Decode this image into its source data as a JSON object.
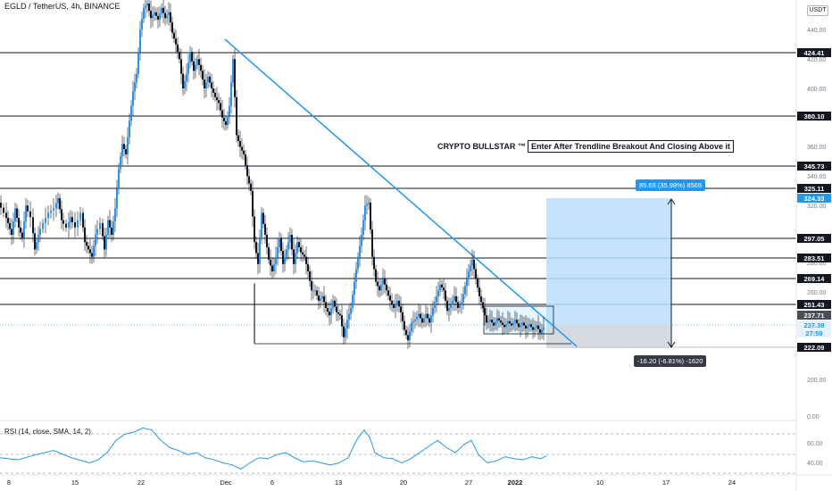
{
  "header": {
    "symbol_line": "EGLD / TetherUS, 4h, BINANCE",
    "currency": "USDT"
  },
  "annotations": {
    "brand": "CRYPTO BULLSTAR ™",
    "note": "Enter After Trendline Breakout And Closing Above it",
    "target_label": "85.69 (35.98%) 8569",
    "stop_label": "-16.20 (-6.81%) -1620"
  },
  "rsi": {
    "label": "RSI (14, close, SMA, 14, 2)",
    "ticks": [
      "60.00",
      "40.00"
    ]
  },
  "colors": {
    "trendline": "#2196f3",
    "hline": "#131722",
    "target_zone": "#bbdefb",
    "stop_zone": "#d1d4dc",
    "rsi_line": "#2196f3",
    "candle": "#131722"
  },
  "chart_data": {
    "type": "candlestick",
    "axis_ticks": [
      "440.00",
      "420.00",
      "400.00",
      "360.00",
      "340.00",
      "320.00",
      "280.00",
      "260.00",
      "200.00",
      "0.00"
    ],
    "x_ticks": [
      "8",
      "15",
      "22",
      "Dec",
      "6",
      "13",
      "20",
      "27",
      "2022",
      "10",
      "17",
      "24"
    ],
    "horizontal_levels": [
      {
        "label": "424.41",
        "value": 424.41
      },
      {
        "label": "380.10",
        "value": 380.1
      },
      {
        "label": "345.73",
        "value": 345.73
      },
      {
        "label": "325.11",
        "value": 325.11
      },
      {
        "label": "324.33",
        "value": 324.33,
        "kind": "target"
      },
      {
        "label": "297.05",
        "value": 297.05
      },
      {
        "label": "283.51",
        "value": 283.51
      },
      {
        "label": "269.14",
        "value": 269.14
      },
      {
        "label": "251.43",
        "value": 251.43
      },
      {
        "label": "237.71",
        "value": 237.71,
        "kind": "entry"
      },
      {
        "label": "237.39",
        "value": 237.39,
        "kind": "price"
      },
      {
        "label": "27:59",
        "kind": "countdown"
      },
      {
        "label": "222.09",
        "value": 222.09,
        "kind": "stop"
      }
    ],
    "price_path": [
      [
        0,
        322
      ],
      [
        6,
        315
      ],
      [
        10,
        308
      ],
      [
        14,
        300
      ],
      [
        18,
        318
      ],
      [
        22,
        305
      ],
      [
        26,
        298
      ],
      [
        30,
        320
      ],
      [
        36,
        312
      ],
      [
        40,
        290
      ],
      [
        44,
        300
      ],
      [
        50,
        308
      ],
      [
        56,
        315
      ],
      [
        62,
        318
      ],
      [
        66,
        325
      ],
      [
        70,
        310
      ],
      [
        76,
        305
      ],
      [
        80,
        312
      ],
      [
        86,
        305
      ],
      [
        92,
        315
      ],
      [
        96,
        295
      ],
      [
        100,
        290
      ],
      [
        104,
        285
      ],
      [
        108,
        300
      ],
      [
        114,
        308
      ],
      [
        118,
        290
      ],
      [
        122,
        310
      ],
      [
        126,
        300
      ],
      [
        130,
        318
      ],
      [
        134,
        345
      ],
      [
        138,
        362
      ],
      [
        142,
        355
      ],
      [
        146,
        378
      ],
      [
        150,
        398
      ],
      [
        154,
        410
      ],
      [
        158,
        440
      ],
      [
        162,
        455
      ],
      [
        166,
        458
      ],
      [
        170,
        448
      ],
      [
        174,
        452
      ],
      [
        178,
        447
      ],
      [
        182,
        455
      ],
      [
        186,
        448
      ],
      [
        190,
        452
      ],
      [
        194,
        438
      ],
      [
        198,
        430
      ],
      [
        202,
        420
      ],
      [
        206,
        400
      ],
      [
        210,
        410
      ],
      [
        214,
        425
      ],
      [
        218,
        412
      ],
      [
        222,
        420
      ],
      [
        226,
        412
      ],
      [
        230,
        400
      ],
      [
        234,
        408
      ],
      [
        238,
        400
      ],
      [
        242,
        394
      ],
      [
        246,
        390
      ],
      [
        250,
        380
      ],
      [
        254,
        375
      ],
      [
        258,
        388
      ],
      [
        262,
        420
      ],
      [
        266,
        368
      ],
      [
        270,
        360
      ],
      [
        274,
        355
      ],
      [
        278,
        340
      ],
      [
        282,
        330
      ],
      [
        286,
        295
      ],
      [
        290,
        280
      ],
      [
        294,
        315
      ],
      [
        298,
        300
      ],
      [
        302,
        283
      ],
      [
        306,
        275
      ],
      [
        310,
        285
      ],
      [
        314,
        298
      ],
      [
        318,
        280
      ],
      [
        322,
        290
      ],
      [
        326,
        300
      ],
      [
        330,
        280
      ],
      [
        334,
        295
      ],
      [
        338,
        288
      ],
      [
        342,
        285
      ],
      [
        346,
        275
      ],
      [
        350,
        262
      ],
      [
        354,
        262
      ],
      [
        358,
        255
      ],
      [
        362,
        258
      ],
      [
        366,
        250
      ],
      [
        370,
        245
      ],
      [
        374,
        255
      ],
      [
        378,
        247
      ],
      [
        382,
        245
      ],
      [
        386,
        230
      ],
      [
        390,
        242
      ],
      [
        394,
        250
      ],
      [
        398,
        268
      ],
      [
        402,
        285
      ],
      [
        406,
        300
      ],
      [
        410,
        320
      ],
      [
        414,
        322
      ],
      [
        418,
        285
      ],
      [
        422,
        268
      ],
      [
        426,
        262
      ],
      [
        430,
        270
      ],
      [
        434,
        262
      ],
      [
        438,
        255
      ],
      [
        442,
        250
      ],
      [
        446,
        255
      ],
      [
        450,
        247
      ],
      [
        454,
        235
      ],
      [
        458,
        228
      ],
      [
        462,
        240
      ],
      [
        466,
        242
      ],
      [
        470,
        246
      ],
      [
        474,
        240
      ],
      [
        478,
        246
      ],
      [
        482,
        240
      ],
      [
        486,
        250
      ],
      [
        490,
        258
      ],
      [
        494,
        266
      ],
      [
        498,
        262
      ],
      [
        502,
        248
      ],
      [
        506,
        252
      ],
      [
        510,
        258
      ],
      [
        514,
        250
      ],
      [
        518,
        254
      ],
      [
        522,
        265
      ],
      [
        526,
        275
      ],
      [
        530,
        283
      ],
      [
        534,
        270
      ],
      [
        538,
        258
      ],
      [
        542,
        250
      ],
      [
        546,
        240
      ],
      [
        550,
        242
      ],
      [
        554,
        238
      ],
      [
        558,
        243
      ],
      [
        562,
        240
      ],
      [
        566,
        237
      ],
      [
        570,
        241
      ],
      [
        574,
        238
      ],
      [
        578,
        242
      ],
      [
        582,
        237
      ],
      [
        586,
        240
      ],
      [
        590,
        236
      ],
      [
        594,
        239
      ],
      [
        598,
        235
      ],
      [
        602,
        238
      ],
      [
        606,
        233
      ],
      [
        610,
        237
      ]
    ],
    "rsi_path": [
      [
        0,
        45
      ],
      [
        20,
        43
      ],
      [
        40,
        48
      ],
      [
        60,
        52
      ],
      [
        80,
        45
      ],
      [
        100,
        40
      ],
      [
        110,
        43
      ],
      [
        120,
        50
      ],
      [
        130,
        62
      ],
      [
        140,
        68
      ],
      [
        150,
        70
      ],
      [
        160,
        74
      ],
      [
        170,
        72
      ],
      [
        180,
        62
      ],
      [
        190,
        55
      ],
      [
        200,
        52
      ],
      [
        210,
        48
      ],
      [
        220,
        50
      ],
      [
        230,
        45
      ],
      [
        240,
        43
      ],
      [
        250,
        40
      ],
      [
        260,
        38
      ],
      [
        270,
        34
      ],
      [
        280,
        40
      ],
      [
        290,
        45
      ],
      [
        300,
        44
      ],
      [
        310,
        48
      ],
      [
        320,
        50
      ],
      [
        330,
        45
      ],
      [
        340,
        41
      ],
      [
        350,
        42
      ],
      [
        360,
        40
      ],
      [
        370,
        38
      ],
      [
        380,
        40
      ],
      [
        390,
        45
      ],
      [
        400,
        63
      ],
      [
        408,
        72
      ],
      [
        414,
        65
      ],
      [
        420,
        50
      ],
      [
        430,
        45
      ],
      [
        440,
        44
      ],
      [
        450,
        40
      ],
      [
        460,
        44
      ],
      [
        470,
        50
      ],
      [
        480,
        56
      ],
      [
        490,
        62
      ],
      [
        500,
        55
      ],
      [
        510,
        50
      ],
      [
        520,
        58
      ],
      [
        528,
        62
      ],
      [
        536,
        48
      ],
      [
        546,
        40
      ],
      [
        556,
        42
      ],
      [
        566,
        46
      ],
      [
        576,
        44
      ],
      [
        586,
        43
      ],
      [
        596,
        46
      ],
      [
        606,
        44
      ],
      [
        612,
        47
      ]
    ]
  }
}
